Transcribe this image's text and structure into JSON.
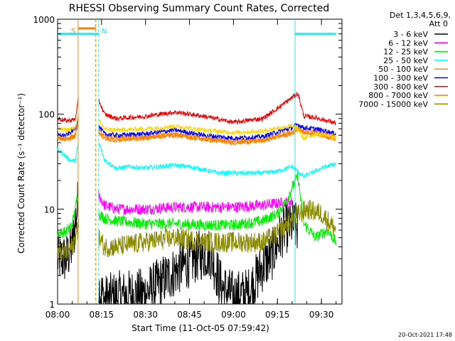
{
  "chart_data": {
    "type": "line",
    "title": "RHESSI Observing Summary Count Rates, Corrected",
    "xlabel": "Start Time (11-Oct-05 07:59:42)",
    "ylabel": "Corrected Count Rate (s⁻¹ detector⁻¹)",
    "footer": "20-Oct-2021 17:48",
    "yscale": "log",
    "xlim": [
      "08:00",
      "09:37"
    ],
    "ylim": [
      1,
      1000
    ],
    "grid": false,
    "legend_position": "top-right outside plot",
    "legend_header": [
      "Det 1,3,4,5,6,9,",
      "Att 0"
    ],
    "xticks": [
      "08:00",
      "08:15",
      "08:30",
      "08:45",
      "09:00",
      "09:15",
      "09:30"
    ],
    "yticks": [
      "1",
      "10",
      "100",
      "1000"
    ],
    "markers": [
      {
        "label": "S",
        "color": "#ff7f00",
        "x_start": "08:07",
        "x_end": "08:13",
        "style": "solid-start dashed-end"
      },
      {
        "label": "N",
        "color": "#33e0e8",
        "x_start": "08:14",
        "x_end": "09:21",
        "style": "dashed-start solid-end"
      }
    ],
    "data_gaps": [
      {
        "x_start": "08:00",
        "x_end": "08:14",
        "color": "#33e0e8",
        "level": 700
      },
      {
        "x_start": "09:21",
        "x_end": "09:35",
        "color": "#33e0e8",
        "level": 700
      }
    ],
    "series": [
      {
        "name": "3 - 6 keV",
        "color": "#000000",
        "x": [
          "08:00",
          "08:03",
          "08:05",
          "08:07",
          "08:14",
          "08:16",
          "08:20",
          "08:30",
          "08:40",
          "08:48",
          "08:52",
          "08:56",
          "09:00",
          "09:05",
          "09:10",
          "09:13",
          "09:17",
          "09:20",
          "09:22"
        ],
        "y": [
          3,
          3,
          4,
          12,
          1.5,
          1.1,
          1.2,
          1.3,
          2.2,
          3.2,
          3.5,
          1.5,
          1.2,
          1.3,
          2.5,
          3.2,
          6,
          7,
          6
        ]
      },
      {
        "name": "6 - 12 keV",
        "color": "#ff00ff",
        "x": [
          "08:14",
          "08:16",
          "08:20",
          "08:30",
          "08:40",
          "08:50",
          "09:00",
          "09:10",
          "09:15",
          "09:20"
        ],
        "y": [
          14,
          11,
          10,
          10,
          10.5,
          10.5,
          10.5,
          11,
          11.5,
          12
        ]
      },
      {
        "name": "12 - 25 keV",
        "color": "#00ee00",
        "x": [
          "08:00",
          "08:03",
          "08:05",
          "08:06",
          "08:07",
          "08:14",
          "08:16",
          "08:20",
          "08:30",
          "08:40",
          "08:50",
          "09:00",
          "09:10",
          "09:15",
          "09:18",
          "09:20",
          "09:22",
          "09:24",
          "09:28",
          "09:32",
          "09:35"
        ],
        "y": [
          5.5,
          5.8,
          7,
          10,
          15,
          9,
          8,
          7.5,
          7,
          7,
          6.8,
          6.8,
          7.5,
          9,
          12,
          17,
          22,
          7,
          5,
          6,
          4.5
        ]
      },
      {
        "name": "25 - 50 keV",
        "color": "#00ffff",
        "x": [
          "08:00",
          "08:02",
          "08:04",
          "08:06",
          "08:07",
          "08:14",
          "08:16",
          "08:20",
          "08:25",
          "08:30",
          "08:35",
          "08:40",
          "08:45",
          "08:50",
          "08:55",
          "09:00",
          "09:05",
          "09:10",
          "09:15",
          "09:20",
          "09:24",
          "09:30",
          "09:35"
        ],
        "y": [
          42,
          38,
          33,
          32,
          48,
          50,
          33,
          27,
          28,
          27,
          28,
          29,
          28,
          26,
          24,
          24,
          24,
          24,
          25,
          28,
          22,
          27,
          30
        ]
      },
      {
        "name": "50 - 100 keV",
        "color": "#ff8c00",
        "x": [
          "08:00",
          "08:03",
          "08:06",
          "08:07",
          "08:14",
          "08:16",
          "08:20",
          "08:30",
          "08:40",
          "08:50",
          "09:00",
          "09:10",
          "09:15",
          "09:20",
          "09:22",
          "09:24",
          "09:28",
          "09:32",
          "09:35"
        ],
        "y": [
          56,
          55,
          60,
          80,
          68,
          58,
          56,
          58,
          62,
          56,
          52,
          54,
          60,
          65,
          72,
          68,
          66,
          62,
          58
        ]
      },
      {
        "name": "100 - 300 keV",
        "color": "#0000ff",
        "x": [
          "08:00",
          "08:03",
          "08:06",
          "08:07",
          "08:14",
          "08:16",
          "08:20",
          "08:30",
          "08:40",
          "08:50",
          "09:00",
          "09:10",
          "09:15",
          "09:20",
          "09:22",
          "09:24",
          "09:28",
          "09:32",
          "09:35"
        ],
        "y": [
          60,
          60,
          70,
          90,
          75,
          62,
          60,
          62,
          68,
          60,
          56,
          58,
          65,
          72,
          78,
          72,
          70,
          66,
          62
        ]
      },
      {
        "name": "300 - 800 keV",
        "color": "#ee0000",
        "x": [
          "08:00",
          "08:03",
          "08:06",
          "08:07",
          "08:14",
          "08:16",
          "08:20",
          "08:30",
          "08:40",
          "08:50",
          "09:00",
          "09:10",
          "09:15",
          "09:20",
          "09:22",
          "09:24",
          "09:28",
          "09:32",
          "09:35"
        ],
        "y": [
          90,
          85,
          88,
          140,
          140,
          100,
          90,
          95,
          105,
          95,
          82,
          90,
          115,
          150,
          165,
          95,
          92,
          85,
          80
        ]
      },
      {
        "name": "800 - 7000 keV",
        "color": "#ff7f00",
        "x": [
          "08:00",
          "08:03",
          "08:06",
          "08:07",
          "08:14",
          "08:16",
          "08:20",
          "08:30",
          "08:40",
          "08:50",
          "09:00",
          "09:10",
          "09:15",
          "09:20",
          "09:22",
          "09:24",
          "09:28",
          "09:32",
          "09:35"
        ],
        "y": [
          55,
          54,
          58,
          78,
          65,
          55,
          53,
          56,
          60,
          54,
          50,
          52,
          58,
          62,
          70,
          64,
          62,
          58,
          54
        ]
      },
      {
        "name": "7000 - 15000 keV",
        "color": "#8b8b00",
        "x": [
          "08:00",
          "08:03",
          "08:05",
          "08:07",
          "08:14",
          "08:16",
          "08:20",
          "08:30",
          "08:40",
          "08:50",
          "09:00",
          "09:10",
          "09:15",
          "09:18",
          "09:20",
          "09:25",
          "09:30",
          "09:35"
        ],
        "y": [
          3.5,
          3.5,
          4,
          6,
          5,
          4,
          4,
          4.5,
          5,
          4.5,
          4.5,
          4.5,
          5.5,
          7,
          8,
          10,
          9,
          6
        ]
      },
      {
        "name": "",
        "color": "#ffd700",
        "x": [
          "08:00",
          "08:03",
          "08:06",
          "08:07",
          "08:14",
          "08:16",
          "08:20",
          "08:30",
          "08:40",
          "08:50",
          "09:00",
          "09:10",
          "09:15",
          "09:20",
          "09:22",
          "09:24",
          "09:28",
          "09:32",
          "09:35"
        ],
        "y": [
          70,
          68,
          72,
          95,
          85,
          70,
          68,
          70,
          75,
          68,
          64,
          66,
          72,
          75,
          70,
          55,
          62,
          60,
          56
        ]
      }
    ]
  }
}
